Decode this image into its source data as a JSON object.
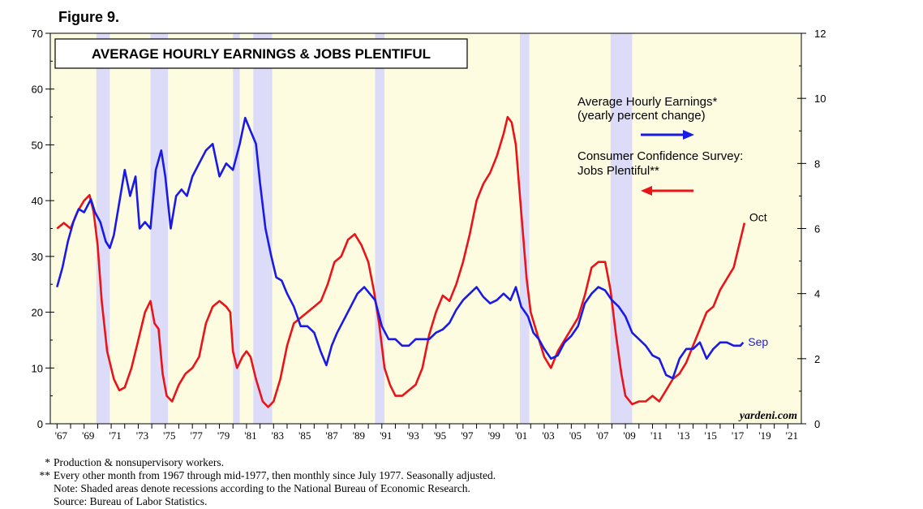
{
  "figure_label": "Figure 9.",
  "chart_data": {
    "type": "line",
    "title": "AVERAGE HOURLY EARNINGS & JOBS PLENTIFUL",
    "x_range": [
      1966.5,
      2022
    ],
    "x_tick_labels": [
      "'67",
      "'69",
      "'71",
      "'73",
      "'75",
      "'77",
      "'79",
      "'81",
      "'83",
      "'85",
      "'87",
      "'89",
      "'91",
      "'93",
      "'95",
      "'97",
      "'99",
      "'01",
      "'03",
      "'05",
      "'07",
      "'09",
      "'11",
      "'13",
      "'15",
      "'17",
      "'19",
      "'21"
    ],
    "left_axis": {
      "min": 0,
      "max": 70,
      "ticks": [
        0,
        10,
        20,
        30,
        40,
        50,
        60,
        70
      ],
      "tick_labels": [
        "0",
        "10",
        "20",
        "30",
        "40",
        "50",
        "60",
        "70"
      ]
    },
    "right_axis": {
      "min": 0,
      "max": 12,
      "ticks": [
        0,
        2,
        4,
        6,
        8,
        10,
        12
      ],
      "tick_labels": [
        "0",
        "2",
        "4",
        "6",
        "8",
        "10",
        "12"
      ]
    },
    "recessions": [
      [
        1969.9,
        1970.9
      ],
      [
        1973.9,
        1975.2
      ],
      [
        1980.0,
        1980.5
      ],
      [
        1981.5,
        1982.9
      ],
      [
        1990.5,
        1991.2
      ],
      [
        2001.2,
        2001.9
      ],
      [
        2007.9,
        2009.5
      ]
    ],
    "series": [
      {
        "name": "Consumer Confidence Survey: Jobs Plentiful**",
        "axis": "left",
        "color": "#e8141a",
        "end_label": "Oct",
        "points": [
          [
            1967,
            35
          ],
          [
            1967.5,
            36
          ],
          [
            1968,
            35
          ],
          [
            1968.5,
            38
          ],
          [
            1969,
            40
          ],
          [
            1969.4,
            41
          ],
          [
            1969.7,
            38
          ],
          [
            1970,
            32
          ],
          [
            1970.3,
            22
          ],
          [
            1970.7,
            13
          ],
          [
            1971.2,
            8
          ],
          [
            1971.6,
            6
          ],
          [
            1972,
            6.5
          ],
          [
            1972.5,
            10
          ],
          [
            1973,
            15
          ],
          [
            1973.5,
            20
          ],
          [
            1973.9,
            22
          ],
          [
            1974.2,
            18
          ],
          [
            1974.5,
            17
          ],
          [
            1974.8,
            9
          ],
          [
            1975.1,
            5
          ],
          [
            1975.5,
            4
          ],
          [
            1976,
            7
          ],
          [
            1976.5,
            9
          ],
          [
            1977,
            10
          ],
          [
            1977.5,
            12
          ],
          [
            1978,
            18
          ],
          [
            1978.5,
            21
          ],
          [
            1979,
            22
          ],
          [
            1979.5,
            21
          ],
          [
            1979.8,
            20
          ],
          [
            1980,
            13
          ],
          [
            1980.3,
            10
          ],
          [
            1980.7,
            12
          ],
          [
            1981,
            13
          ],
          [
            1981.3,
            12
          ],
          [
            1981.7,
            8
          ],
          [
            1982.2,
            4
          ],
          [
            1982.6,
            3
          ],
          [
            1983,
            4
          ],
          [
            1983.5,
            8
          ],
          [
            1984,
            14
          ],
          [
            1984.5,
            18
          ],
          [
            1985,
            19
          ],
          [
            1985.5,
            20
          ],
          [
            1986,
            21
          ],
          [
            1986.5,
            22
          ],
          [
            1987,
            25
          ],
          [
            1987.5,
            29
          ],
          [
            1988,
            30
          ],
          [
            1988.5,
            33
          ],
          [
            1989,
            34
          ],
          [
            1989.5,
            32
          ],
          [
            1990,
            29
          ],
          [
            1990.4,
            24
          ],
          [
            1990.8,
            18
          ],
          [
            1991.2,
            10
          ],
          [
            1991.6,
            7
          ],
          [
            1992,
            5
          ],
          [
            1992.5,
            5
          ],
          [
            1993,
            6
          ],
          [
            1993.5,
            7
          ],
          [
            1994,
            10
          ],
          [
            1994.5,
            16
          ],
          [
            1995,
            20
          ],
          [
            1995.5,
            23
          ],
          [
            1996,
            22
          ],
          [
            1996.5,
            25
          ],
          [
            1997,
            29
          ],
          [
            1997.5,
            34
          ],
          [
            1998,
            40
          ],
          [
            1998.5,
            43
          ],
          [
            1999,
            45
          ],
          [
            1999.5,
            48
          ],
          [
            2000,
            52
          ],
          [
            2000.3,
            55
          ],
          [
            2000.6,
            54
          ],
          [
            2000.9,
            50
          ],
          [
            2001.3,
            38
          ],
          [
            2001.7,
            26
          ],
          [
            2002,
            20
          ],
          [
            2002.5,
            16
          ],
          [
            2003,
            12
          ],
          [
            2003.5,
            10
          ],
          [
            2004,
            13
          ],
          [
            2004.5,
            15
          ],
          [
            2005,
            17
          ],
          [
            2005.5,
            19
          ],
          [
            2006,
            23
          ],
          [
            2006.5,
            28
          ],
          [
            2007,
            29
          ],
          [
            2007.5,
            29
          ],
          [
            2007.9,
            24
          ],
          [
            2008.3,
            16
          ],
          [
            2008.7,
            9
          ],
          [
            2009,
            5
          ],
          [
            2009.5,
            3.5
          ],
          [
            2010,
            4
          ],
          [
            2010.5,
            4
          ],
          [
            2011,
            5
          ],
          [
            2011.5,
            4
          ],
          [
            2012,
            6
          ],
          [
            2012.5,
            8
          ],
          [
            2013,
            9
          ],
          [
            2013.5,
            11
          ],
          [
            2014,
            14
          ],
          [
            2014.5,
            17
          ],
          [
            2015,
            20
          ],
          [
            2015.5,
            21
          ],
          [
            2016,
            24
          ],
          [
            2016.5,
            26
          ],
          [
            2017,
            28
          ],
          [
            2017.5,
            33
          ],
          [
            2017.8,
            36
          ]
        ]
      },
      {
        "name": "Average Hourly Earnings* (yearly percent change)",
        "axis": "right",
        "color": "#1a1ae6",
        "end_label": "Sep",
        "points": [
          [
            1967,
            4.2
          ],
          [
            1967.4,
            4.8
          ],
          [
            1967.8,
            5.6
          ],
          [
            1968.2,
            6.2
          ],
          [
            1968.6,
            6.6
          ],
          [
            1969,
            6.5
          ],
          [
            1969.5,
            6.9
          ],
          [
            1969.8,
            6.5
          ],
          [
            1970.2,
            6.2
          ],
          [
            1970.6,
            5.6
          ],
          [
            1970.9,
            5.4
          ],
          [
            1971.2,
            5.8
          ],
          [
            1971.6,
            6.8
          ],
          [
            1972,
            7.8
          ],
          [
            1972.4,
            7.0
          ],
          [
            1972.8,
            7.6
          ],
          [
            1973.1,
            6.0
          ],
          [
            1973.5,
            6.2
          ],
          [
            1973.9,
            6.0
          ],
          [
            1974.3,
            7.8
          ],
          [
            1974.7,
            8.4
          ],
          [
            1975,
            7.6
          ],
          [
            1975.4,
            6.0
          ],
          [
            1975.8,
            7.0
          ],
          [
            1976.2,
            7.2
          ],
          [
            1976.6,
            7.0
          ],
          [
            1977,
            7.6
          ],
          [
            1977.5,
            8.0
          ],
          [
            1978,
            8.4
          ],
          [
            1978.5,
            8.6
          ],
          [
            1979,
            7.6
          ],
          [
            1979.5,
            8.0
          ],
          [
            1980,
            7.8
          ],
          [
            1980.5,
            8.6
          ],
          [
            1980.9,
            9.4
          ],
          [
            1981.3,
            9.0
          ],
          [
            1981.7,
            8.6
          ],
          [
            1982,
            7.4
          ],
          [
            1982.4,
            6.0
          ],
          [
            1982.8,
            5.2
          ],
          [
            1983.2,
            4.5
          ],
          [
            1983.6,
            4.4
          ],
          [
            1984,
            4.0
          ],
          [
            1984.5,
            3.6
          ],
          [
            1985,
            3.0
          ],
          [
            1985.5,
            3.0
          ],
          [
            1986,
            2.8
          ],
          [
            1986.5,
            2.2
          ],
          [
            1986.9,
            1.8
          ],
          [
            1987.3,
            2.4
          ],
          [
            1987.7,
            2.8
          ],
          [
            1988.2,
            3.2
          ],
          [
            1988.7,
            3.6
          ],
          [
            1989.2,
            4.0
          ],
          [
            1989.7,
            4.2
          ],
          [
            1990.1,
            4.0
          ],
          [
            1990.5,
            3.8
          ],
          [
            1991,
            3.0
          ],
          [
            1991.5,
            2.6
          ],
          [
            1992,
            2.6
          ],
          [
            1992.5,
            2.4
          ],
          [
            1993,
            2.4
          ],
          [
            1993.5,
            2.6
          ],
          [
            1994,
            2.6
          ],
          [
            1994.5,
            2.6
          ],
          [
            1995,
            2.8
          ],
          [
            1995.5,
            2.9
          ],
          [
            1996,
            3.1
          ],
          [
            1996.5,
            3.5
          ],
          [
            1997,
            3.8
          ],
          [
            1997.5,
            4.0
          ],
          [
            1998,
            4.2
          ],
          [
            1998.5,
            3.9
          ],
          [
            1999,
            3.7
          ],
          [
            1999.5,
            3.8
          ],
          [
            2000,
            4.0
          ],
          [
            2000.5,
            3.8
          ],
          [
            2000.9,
            4.2
          ],
          [
            2001.3,
            3.6
          ],
          [
            2001.8,
            3.3
          ],
          [
            2002.2,
            2.8
          ],
          [
            2002.6,
            2.6
          ],
          [
            2003,
            2.3
          ],
          [
            2003.5,
            2.0
          ],
          [
            2004,
            2.1
          ],
          [
            2004.5,
            2.5
          ],
          [
            2005,
            2.7
          ],
          [
            2005.5,
            3.0
          ],
          [
            2006,
            3.7
          ],
          [
            2006.5,
            4.0
          ],
          [
            2007,
            4.2
          ],
          [
            2007.5,
            4.1
          ],
          [
            2008,
            3.8
          ],
          [
            2008.5,
            3.6
          ],
          [
            2009,
            3.3
          ],
          [
            2009.5,
            2.8
          ],
          [
            2010,
            2.6
          ],
          [
            2010.5,
            2.4
          ],
          [
            2011,
            2.1
          ],
          [
            2011.5,
            2.0
          ],
          [
            2012,
            1.5
          ],
          [
            2012.5,
            1.4
          ],
          [
            2013,
            2.0
          ],
          [
            2013.5,
            2.3
          ],
          [
            2014,
            2.3
          ],
          [
            2014.5,
            2.5
          ],
          [
            2015,
            2.0
          ],
          [
            2015.5,
            2.3
          ],
          [
            2016,
            2.5
          ],
          [
            2016.5,
            2.5
          ],
          [
            2017,
            2.4
          ],
          [
            2017.5,
            2.4
          ],
          [
            2017.7,
            2.5
          ]
        ]
      }
    ]
  },
  "legend": {
    "earnings_line1": "Average Hourly Earnings*",
    "earnings_line2": "(yearly percent change)",
    "jobs_line1": "Consumer Confidence Survey:",
    "jobs_line2": "Jobs Plentiful**"
  },
  "watermark": "yardeni.com",
  "colors": {
    "plot_bg": "#fefce0",
    "recession": "#dcdcf8",
    "jobs": "#e8141a",
    "earnings": "#1a1ae6"
  },
  "footnotes": [
    {
      "mark": "*",
      "text": "Production & nonsupervisory workers."
    },
    {
      "mark": "**",
      "text": "Every other month from 1967 through mid-1977, then monthly since July 1977. Seasonally adjusted."
    },
    {
      "mark": "",
      "text": "Note: Shaded areas denote recessions according to the National Bureau of Economic Research."
    },
    {
      "mark": "",
      "text": "Source: Bureau of Labor Statistics."
    }
  ]
}
